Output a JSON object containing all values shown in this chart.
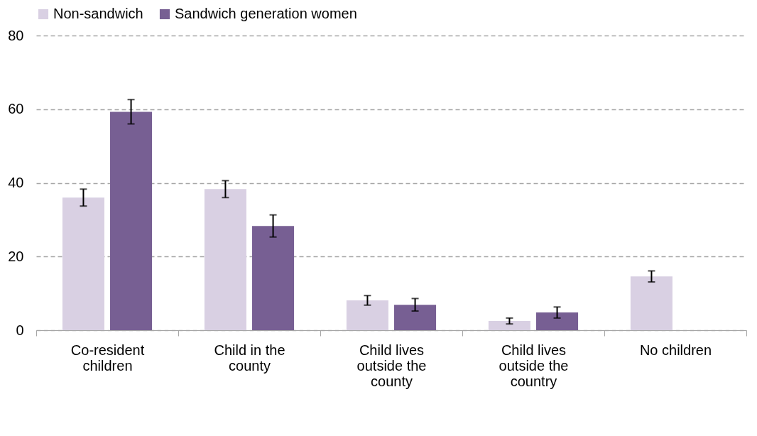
{
  "chart_data": {
    "type": "bar",
    "categories": [
      "Co-resident children",
      "Child in the county",
      "Child lives outside the county",
      "Child lives outside the country",
      "No children"
    ],
    "series": [
      {
        "name": "Non-sandwich",
        "color": "#d9d0e3",
        "values": [
          36.0,
          38.3,
          8.1,
          2.5,
          14.6
        ],
        "errors": [
          2.3,
          2.3,
          1.3,
          0.8,
          1.5
        ]
      },
      {
        "name": "Sandwich generation women",
        "color": "#775f93",
        "values": [
          59.3,
          28.3,
          6.9,
          4.8,
          0
        ],
        "errors": [
          3.3,
          3.0,
          1.7,
          1.5,
          null
        ]
      }
    ],
    "ylim": [
      0,
      80
    ],
    "yticks": [
      0,
      20,
      40,
      60,
      80
    ],
    "grid": "y",
    "legend": "top"
  }
}
